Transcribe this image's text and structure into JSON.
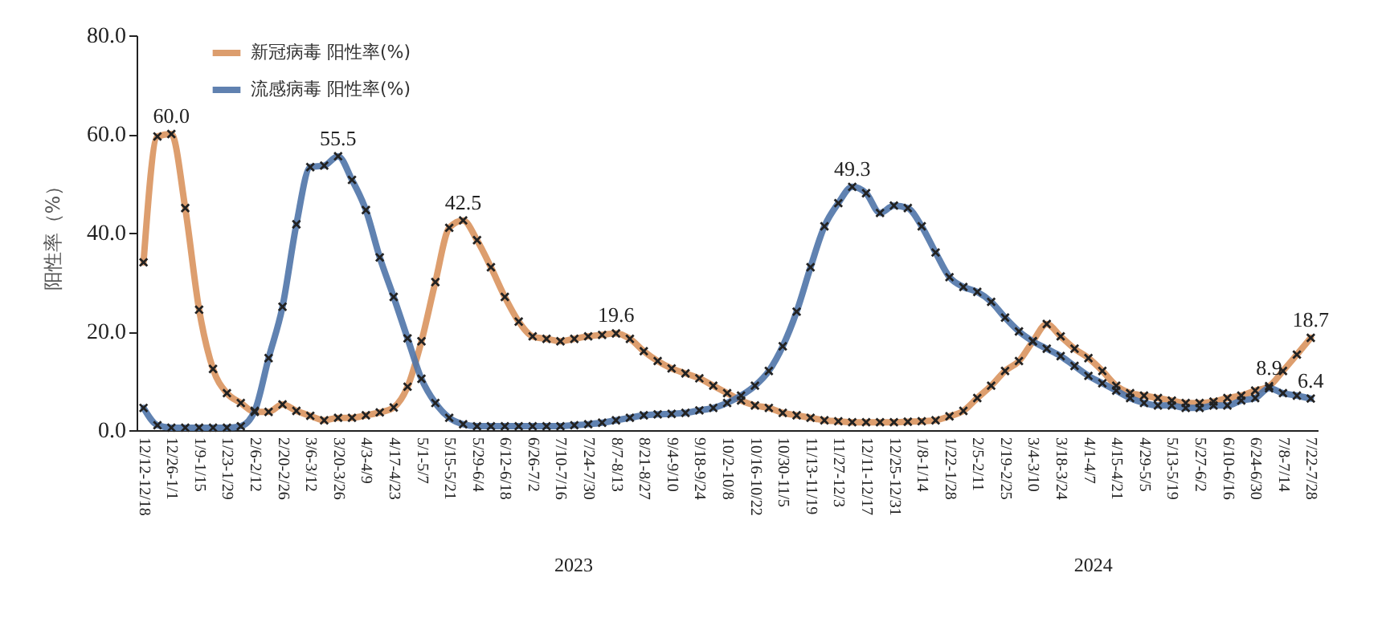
{
  "chart_data": {
    "type": "line",
    "ylabel": "阳性率（%）",
    "categories": [
      "12/12-12/18",
      null,
      "12/26-1/1",
      null,
      "1/9-1/15",
      null,
      "1/23-1/29",
      null,
      "2/6-2/12",
      null,
      "2/20-2/26",
      null,
      "3/6-3/12",
      null,
      "3/20-3/26",
      null,
      "4/3-4/9",
      null,
      "4/17-4/23",
      null,
      "5/1-5/7",
      null,
      "5/15-5/21",
      null,
      "5/29-6/4",
      null,
      "6/12-6/18",
      null,
      "6/26-7/2",
      null,
      "7/10-7/16",
      null,
      "7/24-7/30",
      null,
      "8/7-8/13",
      null,
      "8/21-8/27",
      null,
      "9/4-9/10",
      null,
      "9/18-9/24",
      null,
      "10/2-10/8",
      null,
      "10/16-10/22",
      null,
      "10/30-11/5",
      null,
      "11/13-11/19",
      null,
      "11/27-12/3",
      null,
      "12/11-12/17",
      null,
      "12/25-12/31",
      null,
      "1/8-1/14",
      null,
      "1/22-1/28",
      null,
      "2/5-2/11",
      null,
      "2/19-2/25",
      null,
      "3/4-3/10",
      null,
      "3/18-3/24",
      null,
      "4/1-4/7",
      null,
      "4/15-4/21",
      null,
      "4/29-5/5",
      null,
      "5/13-5/19",
      null,
      "5/27-6/2",
      null,
      "6/10-6/16",
      null,
      "6/24-6/30",
      null,
      "7/8-7/14",
      null,
      "7/22-7/28"
    ],
    "series": [
      {
        "name": "新冠病毒 阳性率(%)",
        "color": "#d9935e",
        "values": [
          34,
          59.5,
          60.0,
          45,
          24.4,
          12.4,
          7.5,
          5.5,
          3.7,
          3.7,
          5.2,
          3.9,
          2.9,
          2.0,
          2.5,
          2.5,
          3.0,
          3.6,
          4.6,
          8.8,
          18,
          30,
          41,
          42.5,
          38.5,
          33,
          27,
          22,
          19,
          18.5,
          18,
          18.5,
          19,
          19.3,
          19.6,
          18.5,
          16,
          14,
          12.5,
          11.5,
          10.5,
          9,
          7.5,
          6,
          5,
          4.5,
          3.5,
          3,
          2.5,
          2,
          1.8,
          1.6,
          1.6,
          1.6,
          1.6,
          1.7,
          1.8,
          2,
          2.8,
          3.9,
          6.5,
          9,
          12,
          14,
          18,
          21.5,
          19,
          16.5,
          14.6,
          12,
          9,
          7.5,
          7,
          6.5,
          6,
          5.5,
          5.5,
          5.8,
          6.5,
          7,
          8,
          8.9,
          12,
          15.3,
          18.7
        ],
        "value_labels": [
          null,
          null,
          "60.0",
          null,
          null,
          null,
          null,
          null,
          null,
          null,
          null,
          null,
          null,
          null,
          null,
          null,
          null,
          null,
          null,
          null,
          null,
          null,
          null,
          "42.5",
          null,
          null,
          null,
          null,
          null,
          null,
          null,
          null,
          null,
          null,
          "19.6",
          null,
          null,
          null,
          null,
          null,
          null,
          null,
          null,
          null,
          null,
          null,
          null,
          null,
          null,
          null,
          null,
          null,
          null,
          null,
          null,
          null,
          null,
          null,
          null,
          null,
          null,
          null,
          null,
          null,
          null,
          null,
          null,
          null,
          null,
          null,
          null,
          null,
          null,
          null,
          null,
          null,
          null,
          null,
          null,
          null,
          null,
          "8.9",
          null,
          null,
          "18.7"
        ]
      },
      {
        "name": "流感病毒 阳性率(%)",
        "color": "#4f74a8",
        "values": [
          4.5,
          1.0,
          0.5,
          0.5,
          0.5,
          0.5,
          0.5,
          0.8,
          3.9,
          14.6,
          25,
          41.7,
          53.3,
          53.6,
          55.5,
          50.7,
          44.6,
          35,
          27,
          18.6,
          10.4,
          5.5,
          2.5,
          1.2,
          0.8,
          0.8,
          0.8,
          0.8,
          0.8,
          0.8,
          0.8,
          1.0,
          1.2,
          1.5,
          2,
          2.5,
          3,
          3.2,
          3.3,
          3.5,
          4,
          4.5,
          5.5,
          7,
          9,
          12,
          17,
          24,
          33,
          41.3,
          46,
          49.3,
          48,
          44,
          45.5,
          45,
          41.3,
          36,
          31,
          29,
          28,
          26,
          22.8,
          20,
          18,
          16.5,
          15,
          13,
          11,
          9.5,
          8,
          6.5,
          5.5,
          5,
          5,
          4.5,
          4.5,
          5,
          5,
          6,
          6.5,
          8.5,
          7.5,
          7,
          6.4
        ],
        "value_labels": [
          null,
          null,
          null,
          null,
          null,
          null,
          null,
          null,
          null,
          null,
          null,
          null,
          null,
          null,
          "55.5",
          null,
          null,
          null,
          null,
          null,
          null,
          null,
          null,
          null,
          null,
          null,
          null,
          null,
          null,
          null,
          null,
          null,
          null,
          null,
          null,
          null,
          null,
          null,
          null,
          null,
          null,
          null,
          null,
          null,
          null,
          null,
          null,
          null,
          null,
          null,
          null,
          "49.3",
          null,
          null,
          null,
          null,
          null,
          null,
          null,
          null,
          null,
          null,
          null,
          null,
          null,
          null,
          null,
          null,
          null,
          null,
          null,
          null,
          null,
          null,
          null,
          null,
          null,
          null,
          null,
          null,
          null,
          null,
          null,
          null,
          "6.4"
        ]
      }
    ],
    "ylim": [
      0,
      80
    ],
    "yticks": [
      {
        "value": 0,
        "label": "0.0"
      },
      {
        "value": 20,
        "label": "20.0"
      },
      {
        "value": 40,
        "label": "40.0"
      },
      {
        "value": 60,
        "label": "60.0"
      },
      {
        "value": 80,
        "label": "80.0"
      }
    ],
    "annotations": [
      "2023",
      "2024"
    ],
    "grid": false,
    "legend": "top left",
    "marker": "cross",
    "line_style": "solid"
  }
}
